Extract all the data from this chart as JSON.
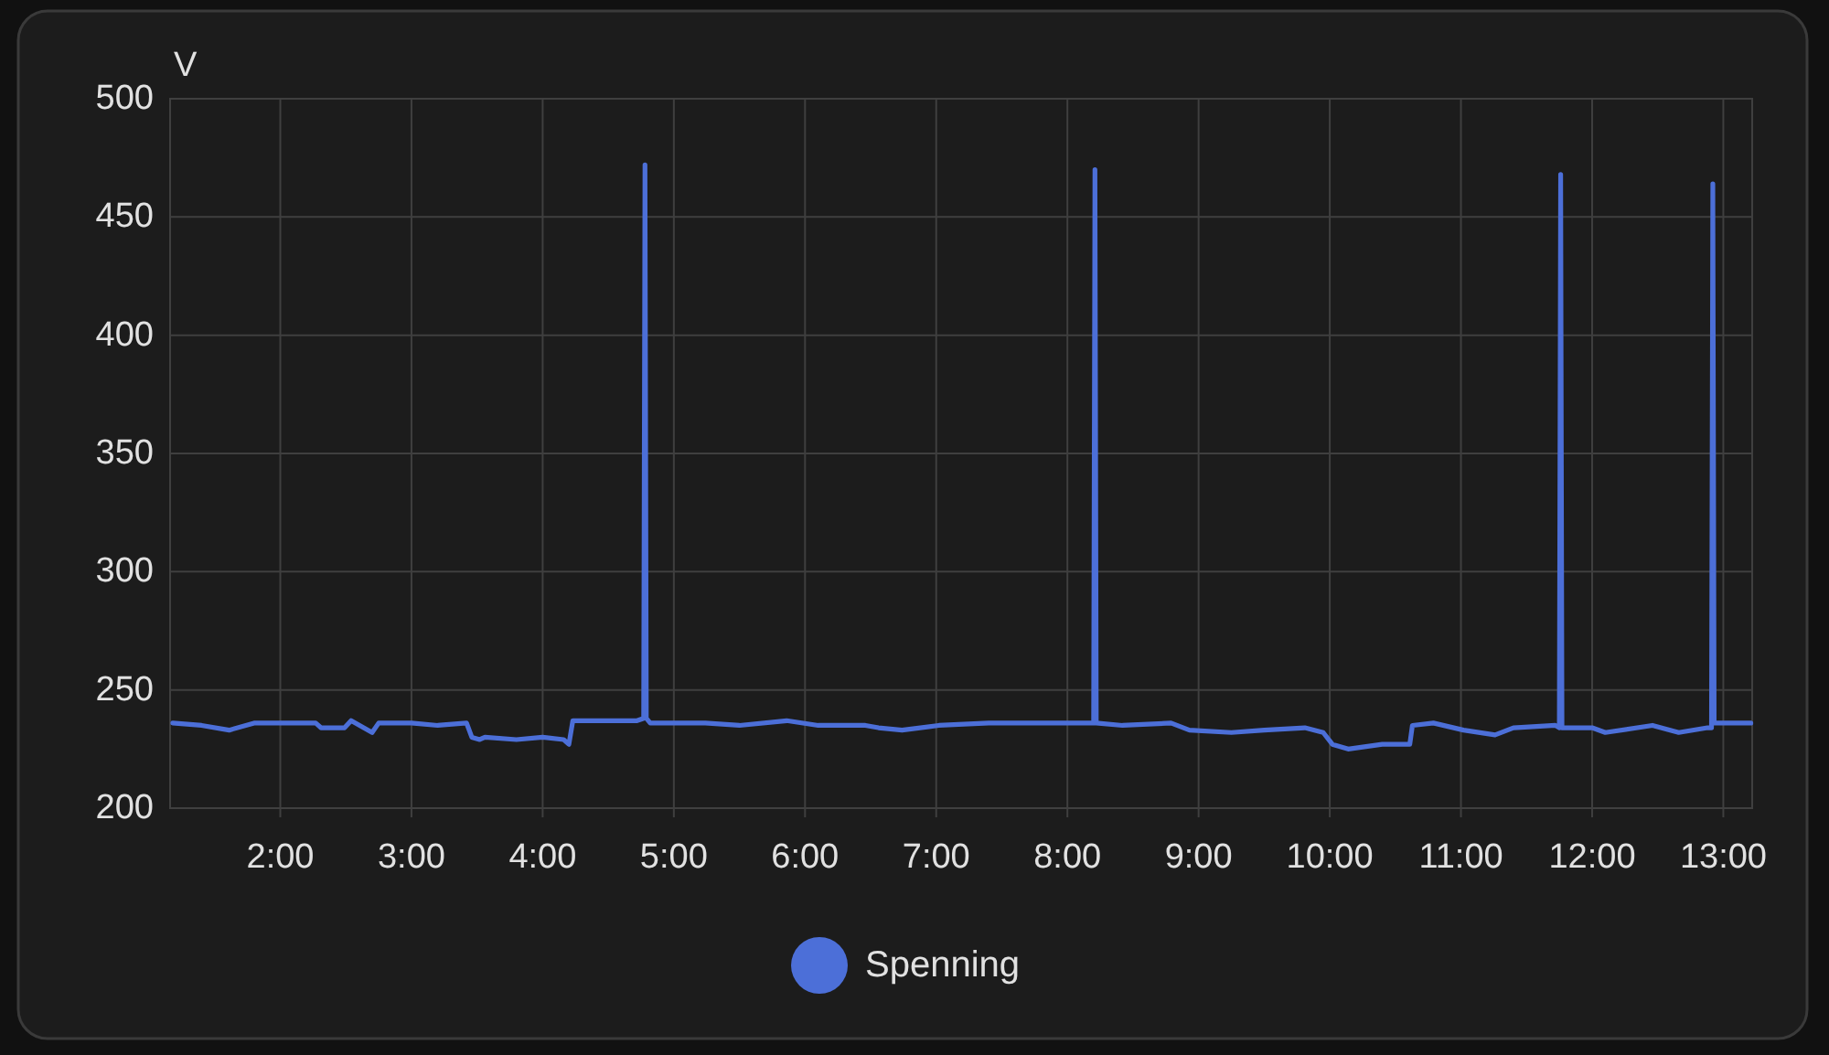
{
  "chart_data": {
    "type": "line",
    "ylabel": "V",
    "x": [
      1.18,
      1.4,
      1.61,
      1.8,
      1.99,
      2.27,
      2.31,
      2.49,
      2.54,
      2.7,
      2.75,
      3.0,
      3.2,
      3.42,
      3.46,
      3.52,
      3.56,
      3.8,
      4.0,
      4.16,
      4.2,
      4.23,
      4.26,
      4.5,
      4.72,
      4.77,
      4.78,
      4.79,
      4.82,
      5.0,
      5.24,
      5.5,
      5.86,
      6.1,
      6.46,
      6.56,
      6.74,
      7.02,
      7.4,
      7.82,
      8.0,
      8.2,
      8.21,
      8.22,
      8.42,
      8.79,
      8.93,
      9.25,
      9.5,
      9.81,
      9.95,
      10.02,
      10.14,
      10.4,
      10.61,
      10.63,
      10.79,
      11.02,
      11.26,
      11.4,
      11.72,
      11.75,
      11.76,
      11.77,
      12.0,
      12.1,
      12.46,
      12.66,
      12.88,
      12.91,
      12.92,
      12.93,
      12.98,
      13.21
    ],
    "series": [
      {
        "name": "Spenning",
        "color": "#4c6fd8",
        "values": [
          236,
          235,
          233,
          236,
          236,
          236,
          234,
          234,
          237,
          232,
          236,
          236,
          235,
          236,
          230,
          229,
          230,
          229,
          230,
          229,
          227,
          237,
          237,
          237,
          237,
          238,
          472,
          238,
          236,
          236,
          236,
          235,
          237,
          235,
          235,
          234,
          233,
          235,
          236,
          236,
          236,
          236,
          470,
          236,
          235,
          236,
          233,
          232,
          233,
          234,
          232,
          227,
          225,
          227,
          227,
          235,
          236,
          233,
          231,
          234,
          235,
          234,
          468,
          234,
          234,
          232,
          235,
          232,
          234,
          234,
          464,
          236,
          236,
          236
        ]
      }
    ],
    "xlim": [
      1.16,
      13.22
    ],
    "xticks": [
      {
        "value": 2,
        "label": "2:00"
      },
      {
        "value": 3,
        "label": "3:00"
      },
      {
        "value": 4,
        "label": "4:00"
      },
      {
        "value": 5,
        "label": "5:00"
      },
      {
        "value": 6,
        "label": "6:00"
      },
      {
        "value": 7,
        "label": "7:00"
      },
      {
        "value": 8,
        "label": "8:00"
      },
      {
        "value": 9,
        "label": "9:00"
      },
      {
        "value": 10,
        "label": "10:00"
      },
      {
        "value": 11,
        "label": "11:00"
      },
      {
        "value": 12,
        "label": "12:00"
      },
      {
        "value": 13,
        "label": "13:00"
      }
    ],
    "ylim": [
      200,
      500
    ],
    "yticks": [
      200,
      250,
      300,
      350,
      400,
      450,
      500
    ],
    "grid": true,
    "legend": "bottom"
  }
}
